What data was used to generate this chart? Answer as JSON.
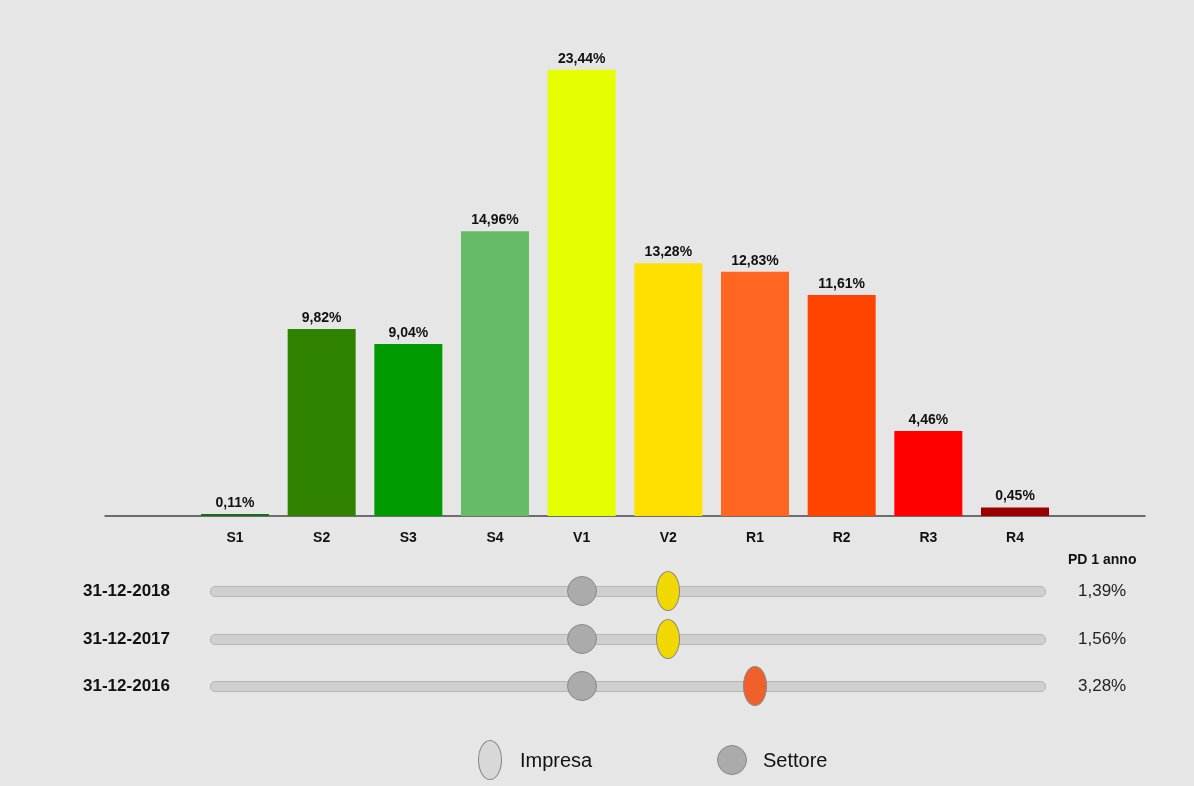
{
  "chart_data": [
    {
      "type": "bar",
      "categories": [
        null,
        "S1",
        "S2",
        "S3",
        "S4",
        "V1",
        "V2",
        "R1",
        "R2",
        "R3",
        "R4",
        null
      ],
      "values": [
        null,
        0.11,
        9.82,
        9.04,
        14.96,
        23.44,
        13.28,
        12.83,
        11.61,
        4.46,
        0.45,
        null
      ],
      "value_labels": [
        null,
        "0,11%",
        "9,82%",
        "9,04%",
        "14,96%",
        "23,44%",
        "13,28%",
        "12,83%",
        "11,61%",
        "4,46%",
        "0,45%",
        null
      ],
      "colors": [
        null,
        "#1a6b1a",
        "#2e8200",
        "#009900",
        "#66bb66",
        "#e6ff00",
        "#ffe000",
        "#ff6622",
        "#ff4400",
        "#ff0000",
        "#990000",
        null
      ]
    },
    {
      "type": "other",
      "y_categories": [
        "31-12-2018",
        "31-12-2017",
        "31-12-2016"
      ],
      "y2_categories": [
        "1,39%",
        "1,56%",
        "3,28%"
      ],
      "y2label": "PD 1 anno",
      "legend": "bottom",
      "series": [
        {
          "name": "Impresa",
          "color": "#d8d8d8",
          "colors": [
            "#f0d800",
            "#f0d800",
            "#f0602a"
          ],
          "x": [
            "V2",
            "V2",
            "R1"
          ],
          "values": [
            null,
            null,
            null
          ]
        },
        {
          "name": "Settore",
          "color": "#ababab",
          "x": [
            "V1",
            "V1",
            "V1"
          ],
          "values": [
            null,
            null,
            null
          ]
        }
      ]
    }
  ]
}
